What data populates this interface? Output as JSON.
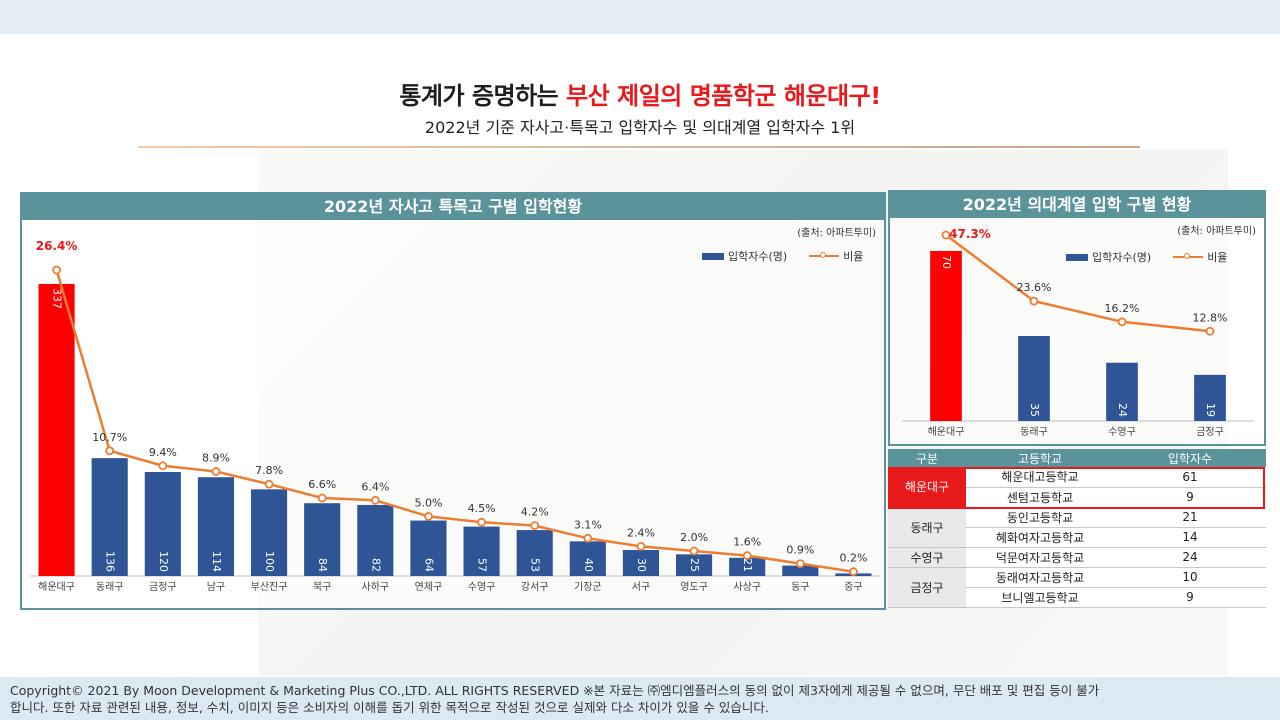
{
  "header": {
    "title_prefix": "통계가 증명하는 ",
    "title_accent": "부산 제일의 명품학군 해운대구!",
    "subtitle": "2022년 기준 자사고·특목고 입학자수 및 의대계열 입학자수 1위"
  },
  "chart_data": [
    {
      "type": "bar",
      "title": "2022년 자사고 특목고 구별 입학현황",
      "source": "(출처: 아파트투미)",
      "categories": [
        "해운대구",
        "동래구",
        "금정구",
        "남구",
        "부산진구",
        "북구",
        "사하구",
        "연제구",
        "수영구",
        "강서구",
        "기장군",
        "서구",
        "영도구",
        "사상구",
        "동구",
        "중구"
      ],
      "series": [
        {
          "name": "입학자수(명)",
          "kind": "bar",
          "values": [
            337,
            136,
            120,
            114,
            100,
            84,
            82,
            64,
            57,
            53,
            40,
            30,
            25,
            21,
            12,
            3
          ]
        },
        {
          "name": "비율",
          "kind": "line",
          "values": [
            26.4,
            10.7,
            9.4,
            8.9,
            7.8,
            6.6,
            6.4,
            5.0,
            4.5,
            4.2,
            3.1,
            2.4,
            2.0,
            1.6,
            0.9,
            0.2
          ]
        }
      ],
      "bar_labels": [
        "337",
        "136",
        "120",
        "114",
        "100",
        "84",
        "82",
        "64",
        "57",
        "53",
        "40",
        "30",
        "25",
        "21",
        "",
        ""
      ],
      "line_labels": [
        "26.4%",
        "10.7%",
        "9.4%",
        "8.9%",
        "7.8%",
        "6.6%",
        "6.4%",
        "5.0%",
        "4.5%",
        "4.2%",
        "3.1%",
        "2.4%",
        "2.0%",
        "1.6%",
        "0.9%",
        "0.2%"
      ],
      "highlight_index": 0,
      "legend": "top-right",
      "grid": false
    },
    {
      "type": "bar",
      "title": "2022년 의대계열 입학 구별 현황",
      "source": "(출처: 아파트투미)",
      "categories": [
        "해운대구",
        "동래구",
        "수영구",
        "금정구"
      ],
      "series": [
        {
          "name": "입학자수(명)",
          "kind": "bar",
          "values": [
            70,
            35,
            24,
            19
          ]
        },
        {
          "name": "비율",
          "kind": "line",
          "values": [
            47.3,
            23.6,
            16.2,
            12.8
          ]
        }
      ],
      "bar_labels": [
        "70",
        "35",
        "24",
        "19"
      ],
      "line_labels": [
        "47.3%",
        "23.6%",
        "16.2%",
        "12.8%"
      ],
      "highlight_index": 0,
      "legend": "top-right",
      "grid": false
    }
  ],
  "table": {
    "headers": [
      "구분",
      "고등학교",
      "입학자수"
    ],
    "groups": [
      {
        "district": "해운대구",
        "highlight": true,
        "rows": [
          {
            "school": "해운대고등학교",
            "count": "61"
          },
          {
            "school": "센텀고등학교",
            "count": "9"
          }
        ]
      },
      {
        "district": "동래구",
        "highlight": false,
        "rows": [
          {
            "school": "동인고등학교",
            "count": "21"
          },
          {
            "school": "혜화여자고등학교",
            "count": "14"
          }
        ]
      },
      {
        "district": "수영구",
        "highlight": false,
        "rows": [
          {
            "school": "덕문여자고등학교",
            "count": "24"
          }
        ]
      },
      {
        "district": "금정구",
        "highlight": false,
        "rows": [
          {
            "school": "동래여자고등학교",
            "count": "10"
          },
          {
            "school": "브니엘고등학교",
            "count": "9"
          }
        ]
      }
    ]
  },
  "colors": {
    "bar": "#2f5597",
    "bar_highlight": "#ff0000",
    "line": "#ed7d31",
    "panel": "#5b939b",
    "accent": "#e8191b"
  },
  "footer": {
    "line1": "Copyright© 2021 By Moon Development & Marketing Plus CO.,LTD. ALL RIGHTS RESERVED ※본 자료는 ㈜엠디엠플러스의 동의 없이 제3자에게 제공될 수 없으며, 무단 배포 및 편집 등이 불가",
    "line2": "합니다. 또한 자료 관련된 내용, 정보, 수치, 이미지 등은 소비자의 이해를 돕기 위한 목적으로 작성된 것으로 실제와 다소 차이가 있을 수 있습니다."
  }
}
